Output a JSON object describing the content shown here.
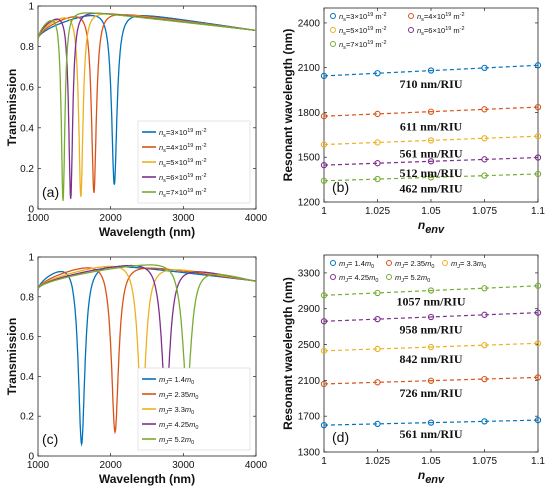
{
  "colors": [
    "#0072BD",
    "#D95319",
    "#EDB120",
    "#7E2F8E",
    "#77AC30"
  ],
  "chart_data": [
    {
      "id": "a",
      "type": "line",
      "panel_label": "(a)",
      "xlabel": "Wavelength (nm)",
      "ylabel": "Transmission",
      "xlim": [
        1000,
        4000
      ],
      "ylim": [
        0,
        1
      ],
      "xticks": [
        "1000",
        "2000",
        "3000",
        "4000"
      ],
      "yticks": [
        "0",
        "0.2",
        "0.4",
        "0.6",
        "0.8",
        "1"
      ],
      "legend_position": "lower-right",
      "series": [
        {
          "name": "ns=3×1019 m-2",
          "sub": "s",
          "base": "3×10",
          "exp": "19",
          "unit": "m",
          "uexp": "-2",
          "dip_x": 2050,
          "dip_min": 0.12,
          "width": 45
        },
        {
          "name": "ns=4×1019 m-2",
          "sub": "s",
          "base": "4×10",
          "exp": "19",
          "unit": "m",
          "uexp": "-2",
          "dip_x": 1770,
          "dip_min": 0.08,
          "width": 40
        },
        {
          "name": "ns=5×1019 m-2",
          "sub": "s",
          "base": "5×10",
          "exp": "19",
          "unit": "m",
          "uexp": "-2",
          "dip_x": 1590,
          "dip_min": 0.06,
          "width": 36
        },
        {
          "name": "ns=6×1019 m-2",
          "sub": "s",
          "base": "6×10",
          "exp": "19",
          "unit": "m",
          "uexp": "-2",
          "dip_x": 1450,
          "dip_min": 0.05,
          "width": 33
        },
        {
          "name": "ns=7×1019 m-2",
          "sub": "s",
          "base": "7×10",
          "exp": "19",
          "unit": "m",
          "uexp": "-2",
          "dip_x": 1345,
          "dip_min": 0.04,
          "width": 30
        }
      ]
    },
    {
      "id": "b",
      "type": "scatter",
      "panel_label": "(b)",
      "xlabel": "n",
      "xlabel_sub": "env",
      "ylabel": "Resonant wavelength (nm)",
      "xlim": [
        1,
        1.1
      ],
      "ylim": [
        1200,
        2500
      ],
      "xticks": [
        "1",
        "1.025",
        "1.05",
        "1.075",
        "1.1"
      ],
      "yticks": [
        "1200",
        "1500",
        "1800",
        "2100",
        "2400"
      ],
      "x": [
        1,
        1.025,
        1.05,
        1.075,
        1.1
      ],
      "legend_position": "top",
      "series": [
        {
          "name": "ns=3×1019 m-2",
          "sub": "s",
          "base": "3×10",
          "exp": "19",
          "unit": "m",
          "uexp": "-2",
          "values": [
            2045,
            2063,
            2081,
            2099,
            2116
          ]
        },
        {
          "name": "ns=4×1019 m-2",
          "sub": "s",
          "base": "4×10",
          "exp": "19",
          "unit": "m",
          "uexp": "-2",
          "values": [
            1775,
            1790,
            1805,
            1821,
            1836
          ]
        },
        {
          "name": "ns=5×1019 m-2",
          "sub": "s",
          "base": "5×10",
          "exp": "19",
          "unit": "m",
          "uexp": "-2",
          "values": [
            1585,
            1599,
            1613,
            1627,
            1641
          ]
        },
        {
          "name": "ns=6×1019 m-2",
          "sub": "s",
          "base": "6×10",
          "exp": "19",
          "unit": "m",
          "uexp": "-2",
          "values": [
            1447,
            1460,
            1473,
            1486,
            1498
          ]
        },
        {
          "name": "ns=7×1019 m-2",
          "sub": "s",
          "base": "7×10",
          "exp": "19",
          "unit": "m",
          "uexp": "-2",
          "values": [
            1342,
            1354,
            1365,
            1377,
            1388
          ]
        }
      ],
      "annotations": [
        {
          "text": "710 nm/RIU",
          "x": 1.05,
          "y": 1990
        },
        {
          "text": "611 nm/RIU",
          "x": 1.05,
          "y": 1705
        },
        {
          "text": "561 nm/RIU",
          "x": 1.05,
          "y": 1525
        },
        {
          "text": "512 nm/RIU",
          "x": 1.05,
          "y": 1395
        },
        {
          "text": "462 nm/RIU",
          "x": 1.05,
          "y": 1290
        }
      ]
    },
    {
      "id": "c",
      "type": "line",
      "panel_label": "(c)",
      "xlabel": "Wavelength (nm)",
      "ylabel": "Transmission",
      "xlim": [
        1000,
        4000
      ],
      "ylim": [
        0,
        1
      ],
      "xticks": [
        "1000",
        "2000",
        "3000",
        "4000"
      ],
      "yticks": [
        "0",
        "0.2",
        "0.4",
        "0.6",
        "0.8",
        "1"
      ],
      "legend_position": "lower-right",
      "series": [
        {
          "name": "mJ= 1.4m0",
          "sub": "J",
          "coef": "1.4",
          "dip_x": 1600,
          "dip_min": 0.06,
          "width": 55
        },
        {
          "name": "mJ= 2.35m0",
          "sub": "J",
          "coef": "2.35",
          "dip_x": 2060,
          "dip_min": 0.12,
          "width": 60
        },
        {
          "name": "mJ= 3.3m0",
          "sub": "J",
          "coef": "3.3",
          "dip_x": 2430,
          "dip_min": 0.2,
          "width": 65
        },
        {
          "name": "mJ= 4.25m0",
          "sub": "J",
          "coef": "4.25",
          "dip_x": 2760,
          "dip_min": 0.26,
          "width": 70
        },
        {
          "name": "mJ= 5.2m0",
          "sub": "J",
          "coef": "5.2",
          "dip_x": 3050,
          "dip_min": 0.33,
          "width": 75
        }
      ]
    },
    {
      "id": "d",
      "type": "scatter",
      "panel_label": "(d)",
      "xlabel": "n",
      "xlabel_sub": "env",
      "ylabel": "Resonant wavelength (nm)",
      "xlim": [
        1,
        1.1
      ],
      "ylim": [
        1300,
        3500
      ],
      "xticks": [
        "1",
        "1.025",
        "1.05",
        "1.075",
        "1.1"
      ],
      "yticks": [
        "1300",
        "1700",
        "2100",
        "2500",
        "2900",
        "3300"
      ],
      "x": [
        1,
        1.025,
        1.05,
        1.075,
        1.1
      ],
      "legend_position": "top",
      "series": [
        {
          "name": "mJ= 1.4m0",
          "sub": "J",
          "coef": "1.4",
          "values": [
            1600,
            1614,
            1628,
            1642,
            1656
          ]
        },
        {
          "name": "mJ= 2.35m0",
          "sub": "J",
          "coef": "2.35",
          "values": [
            2060,
            2078,
            2096,
            2114,
            2133
          ]
        },
        {
          "name": "mJ= 3.3m0",
          "sub": "J",
          "coef": "3.3",
          "values": [
            2430,
            2451,
            2472,
            2493,
            2514
          ]
        },
        {
          "name": "mJ= 4.25m0",
          "sub": "J",
          "coef": "4.25",
          "values": [
            2760,
            2784,
            2808,
            2832,
            2856
          ]
        },
        {
          "name": "mJ= 5.2m0",
          "sub": "J",
          "coef": "5.2",
          "values": [
            3050,
            3076,
            3103,
            3129,
            3156
          ]
        }
      ],
      "annotations": [
        {
          "text": "1057 nm/RIU",
          "x": 1.05,
          "y": 2980
        },
        {
          "text": "958 nm/RIU",
          "x": 1.05,
          "y": 2670
        },
        {
          "text": "842 nm/RIU",
          "x": 1.05,
          "y": 2340
        },
        {
          "text": "726 nm/RIU",
          "x": 1.05,
          "y": 1960
        },
        {
          "text": "561 nm/RIU",
          "x": 1.05,
          "y": 1500
        }
      ]
    }
  ]
}
